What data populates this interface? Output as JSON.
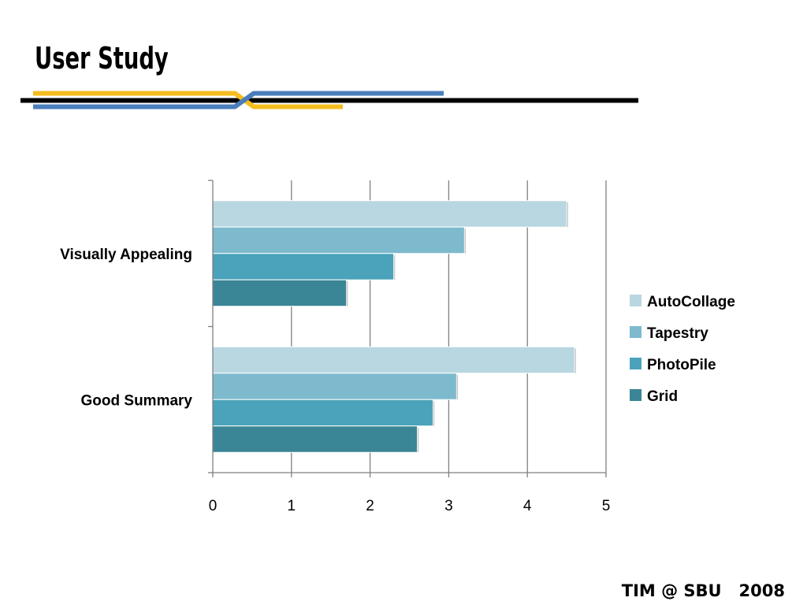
{
  "slide": {
    "title": "User Study",
    "footer": "TIM @ SBU   2008"
  },
  "colors": {
    "gold": "#f5bd1f",
    "blue": "#4a7ebb",
    "black": "#000000",
    "grid": "#808080"
  },
  "chart_data": {
    "type": "bar",
    "orientation": "horizontal",
    "title": "",
    "xlabel": "",
    "ylabel": "",
    "categories": [
      "Visually Appealing",
      "Good Summary"
    ],
    "x_ticks": [
      "0",
      "1",
      "2",
      "3",
      "4",
      "5"
    ],
    "xlim": [
      0,
      5
    ],
    "grid": true,
    "legend_position": "right",
    "series": [
      {
        "name": "AutoCollage",
        "color": "#b8d7e1",
        "values": [
          4.5,
          4.6
        ]
      },
      {
        "name": "Tapestry",
        "color": "#7ebacd",
        "values": [
          3.2,
          3.1
        ]
      },
      {
        "name": "PhotoPile",
        "color": "#4aa3ba",
        "values": [
          2.3,
          2.8
        ]
      },
      {
        "name": "Grid",
        "color": "#3a8596",
        "values": [
          1.7,
          2.6
        ]
      }
    ]
  }
}
